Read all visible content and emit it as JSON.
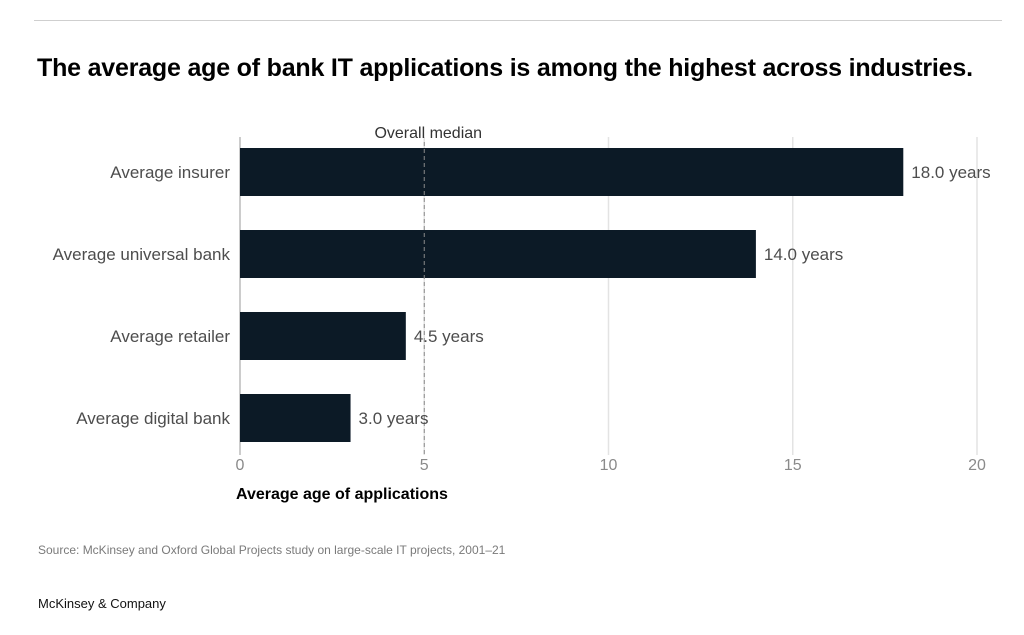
{
  "title": "The average age of bank IT applications is among the highest across industries.",
  "chart_data": {
    "type": "bar",
    "orientation": "horizontal",
    "categories": [
      "Average insurer",
      "Average universal bank",
      "Average retailer",
      "Average digital bank"
    ],
    "values": [
      18.0,
      14.0,
      4.5,
      3.0
    ],
    "value_labels": [
      "18.0 years",
      "14.0 years",
      "4.5 years",
      "3.0 years"
    ],
    "xlabel": "Average age of applications",
    "ylabel": "",
    "xlim": [
      0,
      20
    ],
    "xticks": [
      0,
      5,
      10,
      15,
      20
    ],
    "grid": true,
    "reference_line": {
      "label": "Overall median",
      "value": 5
    },
    "bar_color": "#0c1a26",
    "grid_color": "#e3e3e3"
  },
  "source": "Source: McKinsey and Oxford Global Projects study on large-scale IT projects, 2001–21",
  "brand": "McKinsey & Company"
}
